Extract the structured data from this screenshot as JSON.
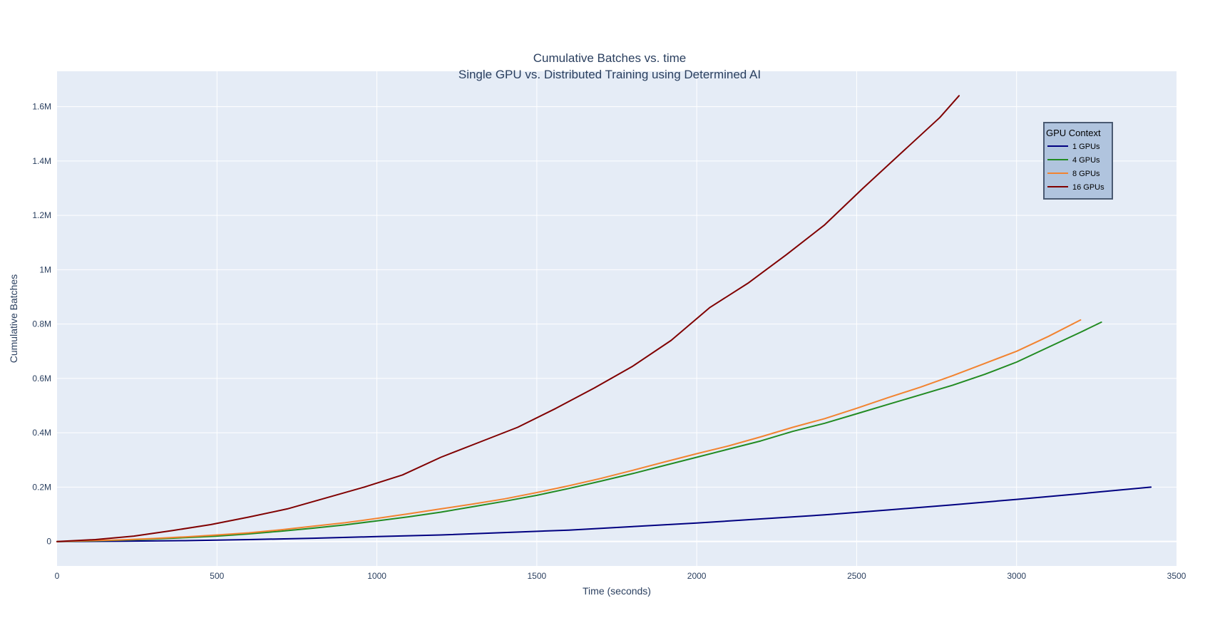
{
  "chart_data": {
    "type": "line",
    "title": "Cumulative Batches vs. time",
    "subtitle": "Single GPU vs. Distributed Training using Determined AI",
    "xlabel": "Time (seconds)",
    "ylabel": "Cumulative Batches",
    "xlim": [
      0,
      3500
    ],
    "ylim": [
      -90000,
      1730000
    ],
    "x_ticks": [
      0,
      500,
      1000,
      1500,
      2000,
      2500,
      3000,
      3500
    ],
    "x_tick_labels": [
      "0",
      "500",
      "1000",
      "1500",
      "2000",
      "2500",
      "3000",
      "3500"
    ],
    "y_ticks": [
      0,
      200000,
      400000,
      600000,
      800000,
      1000000,
      1200000,
      1400000,
      1600000
    ],
    "y_tick_labels": [
      "0",
      "0.2M",
      "0.4M",
      "0.6M",
      "0.8M",
      "1M",
      "1.2M",
      "1.4M",
      "1.6M"
    ],
    "grid": true,
    "background_color": "#e5ecf6",
    "legend": {
      "title": "GPU Context",
      "placement": "top-right",
      "background_color": "#b0c4de"
    },
    "series": [
      {
        "name": "1 GPUs",
        "color": "#000080",
        "x": [
          0,
          200,
          400,
          600,
          800,
          1000,
          1200,
          1400,
          1600,
          1800,
          2000,
          2200,
          2400,
          2600,
          2800,
          3000,
          3200,
          3420
        ],
        "y": [
          0,
          1000,
          3000,
          7000,
          12000,
          18000,
          24000,
          33000,
          42000,
          55000,
          68000,
          83000,
          98000,
          116000,
          135000,
          155000,
          176000,
          200000
        ]
      },
      {
        "name": "4 GPUs",
        "color": "#228b22",
        "x": [
          0,
          100,
          200,
          300,
          400,
          500,
          600,
          700,
          800,
          900,
          1000,
          1100,
          1200,
          1300,
          1400,
          1500,
          1600,
          1700,
          1800,
          1900,
          2000,
          2100,
          2200,
          2300,
          2400,
          2500,
          2600,
          2700,
          2800,
          2900,
          3000,
          3100,
          3200,
          3265
        ],
        "y": [
          0,
          2000,
          5000,
          9000,
          14000,
          20000,
          28000,
          38000,
          49000,
          61000,
          76000,
          91000,
          108000,
          128000,
          148000,
          170000,
          195000,
          222000,
          250000,
          280000,
          310000,
          340000,
          370000,
          405000,
          435000,
          470000,
          505000,
          540000,
          575000,
          615000,
          660000,
          715000,
          770000,
          807000
        ]
      },
      {
        "name": "8 GPUs",
        "color": "#f28330",
        "x": [
          0,
          100,
          200,
          300,
          400,
          500,
          600,
          700,
          800,
          900,
          1000,
          1100,
          1200,
          1300,
          1400,
          1500,
          1600,
          1700,
          1800,
          1900,
          2000,
          2100,
          2200,
          2300,
          2400,
          2500,
          2600,
          2700,
          2800,
          2900,
          3000,
          3100,
          3200
        ],
        "y": [
          0,
          3000,
          6000,
          11000,
          17000,
          24000,
          32000,
          43000,
          56000,
          69000,
          85000,
          102000,
          120000,
          138000,
          157000,
          180000,
          205000,
          232000,
          262000,
          293000,
          323000,
          352000,
          385000,
          420000,
          452000,
          490000,
          530000,
          568000,
          610000,
          655000,
          700000,
          755000,
          815000
        ]
      },
      {
        "name": "16 GPUs",
        "color": "#800000",
        "x": [
          0,
          120,
          240,
          360,
          480,
          600,
          720,
          840,
          960,
          1080,
          1200,
          1320,
          1440,
          1560,
          1680,
          1800,
          1920,
          2040,
          2160,
          2280,
          2400,
          2520,
          2640,
          2760,
          2820
        ],
        "y": [
          0,
          7000,
          20000,
          40000,
          62000,
          90000,
          120000,
          160000,
          200000,
          245000,
          310000,
          365000,
          420000,
          490000,
          565000,
          645000,
          740000,
          860000,
          950000,
          1055000,
          1165000,
          1300000,
          1430000,
          1560000,
          1640000
        ]
      }
    ]
  }
}
